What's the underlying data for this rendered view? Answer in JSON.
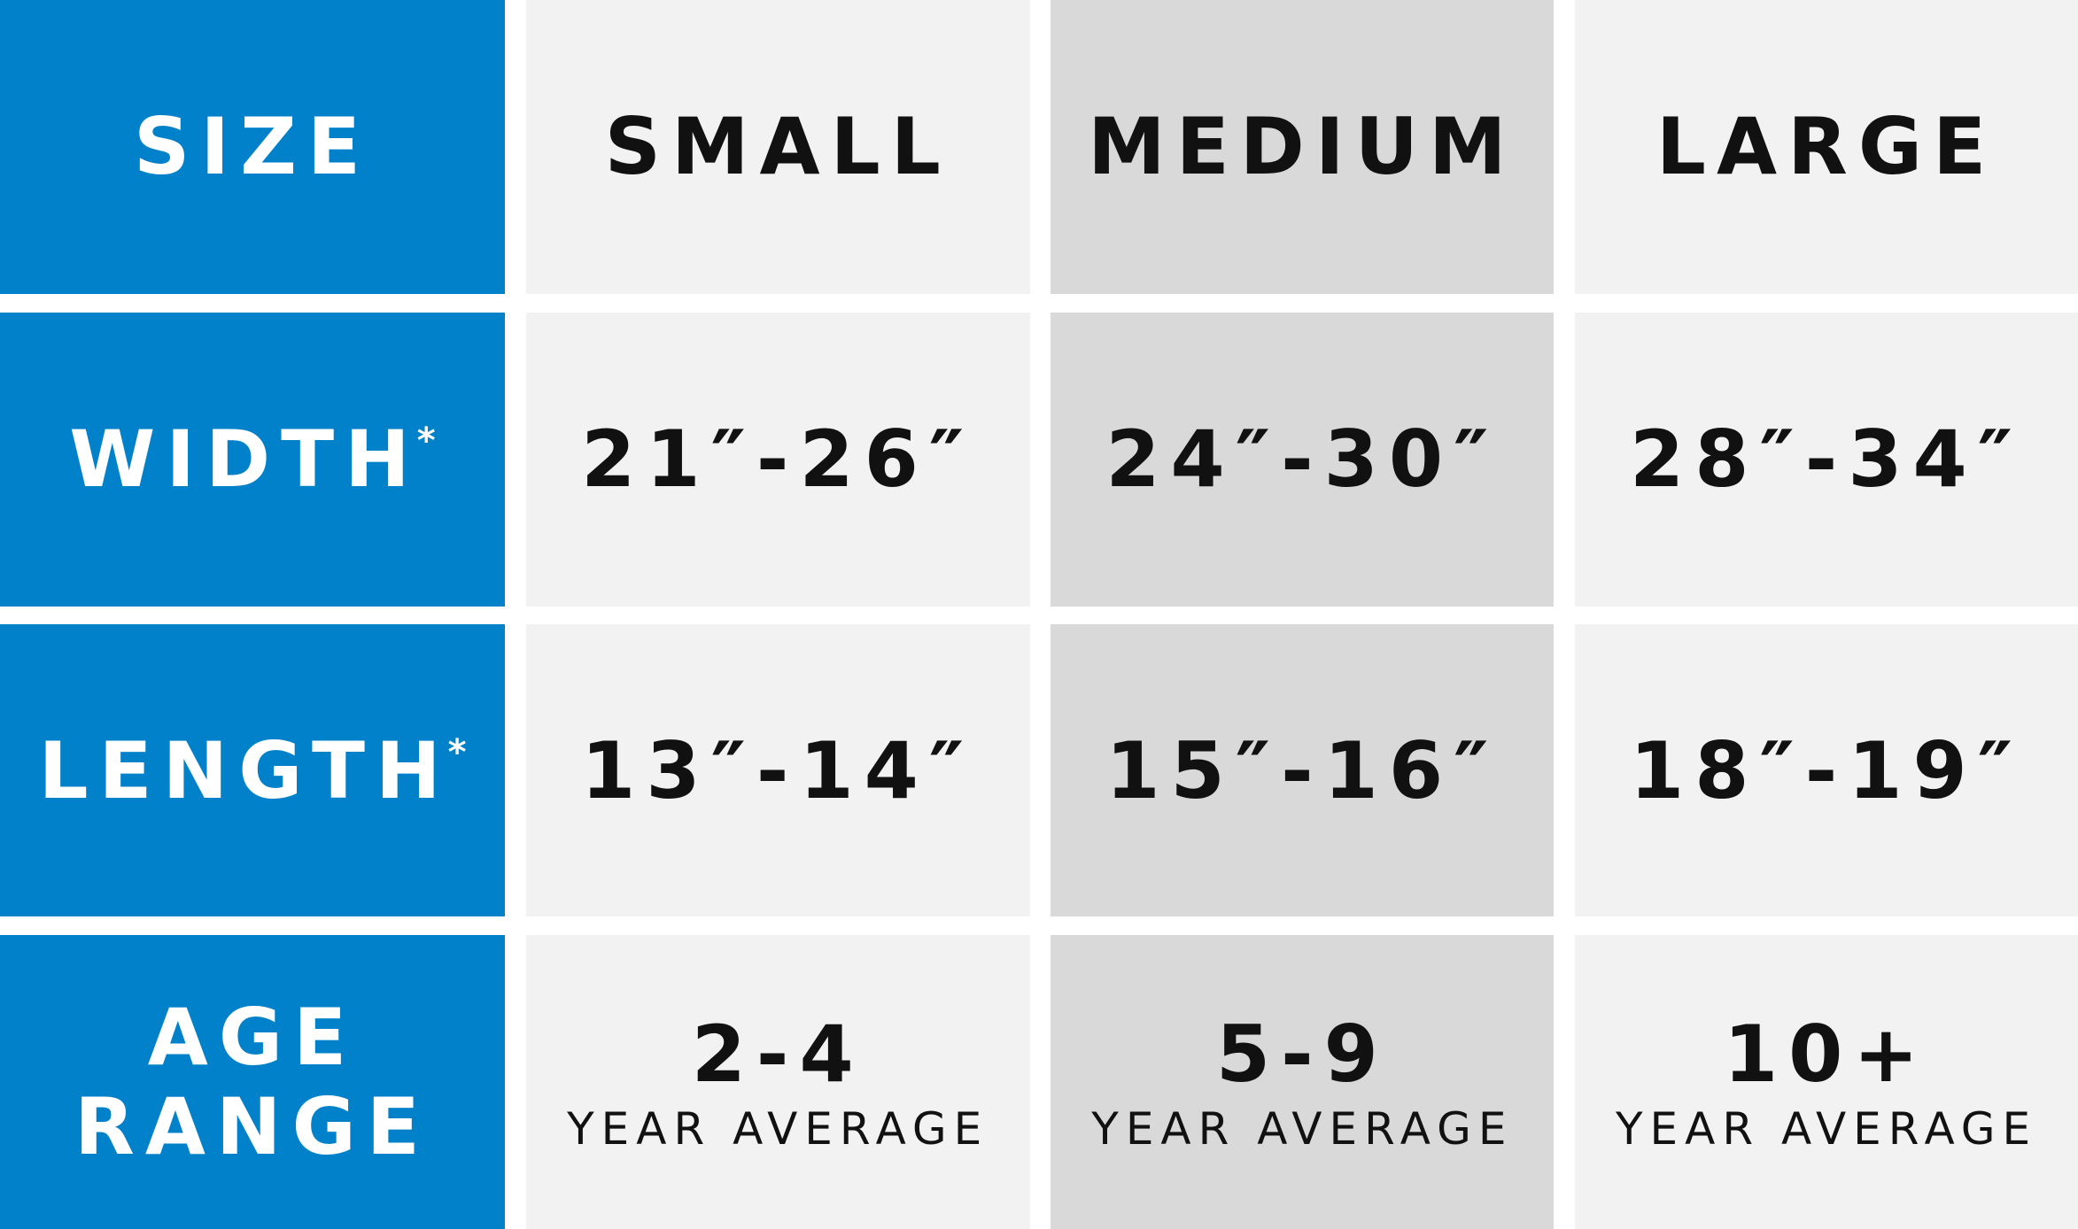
{
  "table": {
    "header": [
      "SIZE",
      "SMALL",
      "MEDIUM",
      "LARGE"
    ],
    "rows": [
      {
        "label": [
          "WIDTH"
        ],
        "note": "*",
        "cells": [
          {
            "value": "21″-26″"
          },
          {
            "value": "24″-30″"
          },
          {
            "value": "28″-34″"
          }
        ]
      },
      {
        "label": [
          "LENGTH"
        ],
        "note": "*",
        "cells": [
          {
            "value": "13″-14″"
          },
          {
            "value": "15″-16″"
          },
          {
            "value": "18″-19″"
          }
        ]
      },
      {
        "label": [
          "AGE",
          "RANGE"
        ],
        "cells": [
          {
            "value": "2-4",
            "caption": "YEAR AVERAGE"
          },
          {
            "value": "5-9",
            "caption": "YEAR AVERAGE"
          },
          {
            "value": "10+",
            "caption": "YEAR AVERAGE"
          }
        ]
      }
    ]
  }
}
